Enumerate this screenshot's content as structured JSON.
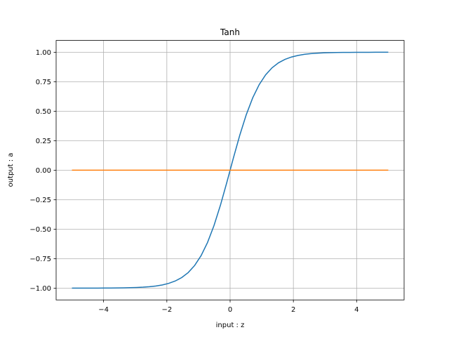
{
  "chart_data": {
    "type": "line",
    "title": "Tanh",
    "xlabel": "input : z",
    "ylabel": "output : a",
    "xlim": [
      -5.5,
      5.5
    ],
    "ylim": [
      -1.1,
      1.1
    ],
    "grid": true,
    "xticks": [
      -4,
      -2,
      0,
      2,
      4
    ],
    "xtick_labels": [
      "−4",
      "−2",
      "0",
      "2",
      "4"
    ],
    "yticks": [
      -1.0,
      -0.75,
      -0.5,
      -0.25,
      0.0,
      0.25,
      0.5,
      0.75,
      1.0
    ],
    "ytick_labels": [
      "−1.00",
      "−0.75",
      "−0.50",
      "−0.25",
      "0.00",
      "0.25",
      "0.50",
      "0.75",
      "1.00"
    ],
    "x": [
      -5,
      -4.7959,
      -4.5918,
      -4.3878,
      -4.1837,
      -3.9796,
      -3.7755,
      -3.5714,
      -3.3673,
      -3.1633,
      -2.9592,
      -2.7551,
      -2.551,
      -2.3469,
      -2.1429,
      -1.9388,
      -1.7347,
      -1.5306,
      -1.3265,
      -1.1224,
      -0.9184,
      -0.7143,
      -0.5102,
      -0.3061,
      -0.102,
      0.102,
      0.3061,
      0.5102,
      0.7143,
      0.9184,
      1.1224,
      1.3265,
      1.5306,
      1.7347,
      1.9388,
      2.1429,
      2.3469,
      2.551,
      2.7551,
      2.9592,
      3.1633,
      3.3673,
      3.5714,
      3.7755,
      3.9796,
      4.1837,
      4.3878,
      4.5918,
      4.7959,
      5
    ],
    "series": [
      {
        "color": "#1f77b4",
        "values": [
          -0.9999,
          -0.9999,
          -0.9998,
          -0.9997,
          -0.9995,
          -0.9993,
          -0.9989,
          -0.9984,
          -0.9976,
          -0.9964,
          -0.9947,
          -0.992,
          -0.988,
          -0.982,
          -0.9728,
          -0.9594,
          -0.9396,
          -0.9105,
          -0.8684,
          -0.8084,
          -0.7251,
          -0.6134,
          -0.4701,
          -0.2969,
          -0.1017,
          0.1017,
          0.2969,
          0.4701,
          0.6134,
          0.7251,
          0.8084,
          0.8684,
          0.9105,
          0.9396,
          0.9594,
          0.9728,
          0.982,
          0.988,
          0.992,
          0.9947,
          0.9964,
          0.9976,
          0.9984,
          0.9989,
          0.9993,
          0.9995,
          0.9997,
          0.9998,
          0.9999,
          0.9999
        ]
      },
      {
        "color": "#ff7f0e",
        "values": [
          0,
          0,
          0,
          0,
          0,
          0,
          0,
          0,
          0,
          0,
          0,
          0,
          0,
          0,
          0,
          0,
          0,
          0,
          0,
          0,
          0,
          0,
          0,
          0,
          0,
          0,
          0,
          0,
          0,
          0,
          0,
          0,
          0,
          0,
          0,
          0,
          0,
          0,
          0,
          0,
          0,
          0,
          0,
          0,
          0,
          0,
          0,
          0,
          0,
          0
        ]
      }
    ]
  }
}
